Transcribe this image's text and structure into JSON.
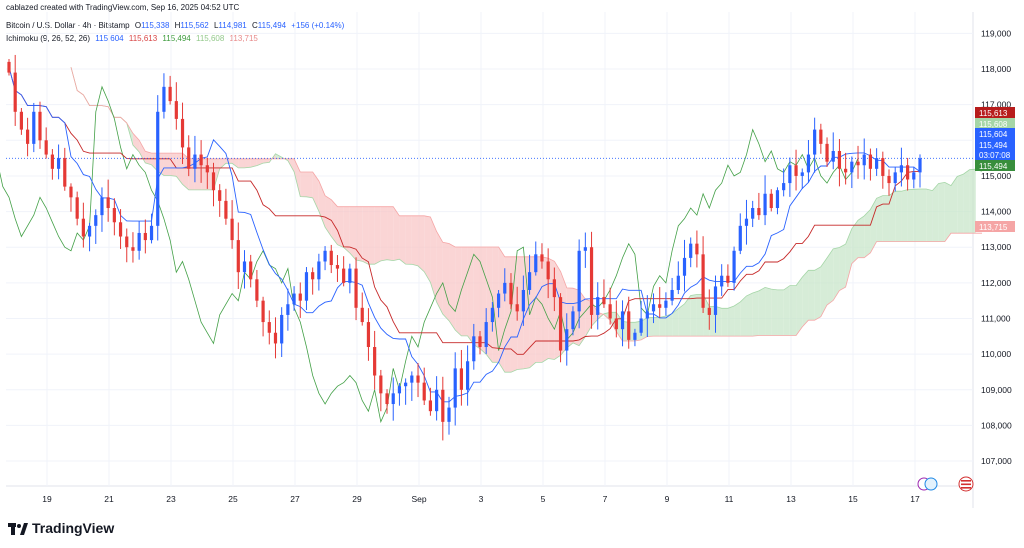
{
  "header": {
    "credit": "cablazed created with TradingView.com, Sep 16, 2025 04:52 UTC",
    "symbol": "Bitcoin / U.S. Dollar · 4h · Bitstamp",
    "o_label": "O",
    "o_value": "115,338",
    "h_label": "H",
    "h_value": "115,562",
    "l_label": "L",
    "l_value": "114,981",
    "c_label": "C",
    "c_value": "115,494",
    "change": "+156 (+0.14%)",
    "indicator_name": "Ichimoku (9, 26, 52, 26)",
    "ind_v1": "115,604",
    "ind_v2": "115,613",
    "ind_v3": "115,494",
    "ind_v4": "115,608",
    "ind_v5": "113,715"
  },
  "footer": {
    "brand": "TradingView"
  },
  "price_tags": [
    {
      "text": "115,613",
      "color": "#b71c1c"
    },
    {
      "text": "115,608",
      "color": "#a5d6a7"
    },
    {
      "text": "115,604",
      "color": "#2962ff"
    },
    {
      "text": "115,494",
      "color": "#2962ff"
    },
    {
      "text": "03:07:08",
      "color": "#2962ff"
    },
    {
      "text": "115,494",
      "color": "#388e3c"
    },
    {
      "text": "113,715",
      "color": "#f5a5a5"
    }
  ],
  "icons": [
    "calendar-event-icon",
    "us-flag-icon"
  ],
  "chart_data": {
    "type": "candlestick",
    "timeframe": "4h",
    "yaxis": {
      "ticks": [
        107000,
        108000,
        109000,
        110000,
        111000,
        112000,
        113000,
        114000,
        115000,
        116000,
        117000,
        118000,
        119000
      ],
      "range": [
        106300,
        119600
      ]
    },
    "xaxis": {
      "ticks": [
        "19",
        "21",
        "23",
        "25",
        "27",
        "29",
        "Sep",
        "3",
        "5",
        "7",
        "9",
        "11",
        "13",
        "15",
        "17"
      ]
    },
    "colors": {
      "up": "#2962ff",
      "down": "#e53935",
      "conversion": "#2962ff",
      "base": "#c62828",
      "lagging": "#43a047",
      "cloud_bull": "#c8e6c9",
      "cloud_bear": "#f8c7c7"
    },
    "close_series": [
      117900,
      116800,
      116300,
      115900,
      116800,
      116000,
      115600,
      115200,
      115500,
      114700,
      114400,
      113800,
      113300,
      113600,
      113900,
      114400,
      114100,
      113700,
      113300,
      113000,
      112900,
      113400,
      113200,
      113600,
      116800,
      117500,
      117100,
      116600,
      115800,
      115200,
      115600,
      115300,
      115100,
      114600,
      114300,
      113800,
      113200,
      112300,
      112600,
      112100,
      111500,
      110900,
      110600,
      110300,
      111100,
      111400,
      111700,
      111500,
      112300,
      112100,
      112600,
      112900,
      112500,
      112400,
      112000,
      112400,
      111300,
      110900,
      110200,
      109400,
      108900,
      108600,
      108900,
      109100,
      109200,
      109400,
      109200,
      108700,
      108400,
      109000,
      108100,
      108500,
      109600,
      109000,
      109800,
      110500,
      110200,
      110900,
      111300,
      111700,
      112000,
      111400,
      111200,
      111800,
      112300,
      112800,
      112600,
      112100,
      111600,
      110100,
      110700,
      111200,
      112900,
      113000,
      111100,
      111600,
      111400,
      111000,
      110700,
      111200,
      110400,
      110600,
      111000,
      111200,
      111400,
      111300,
      111500,
      111800,
      112200,
      112700,
      113100,
      112800,
      111300,
      111100,
      111900,
      112200,
      112000,
      112900,
      113600,
      113800,
      114100,
      113900,
      114500,
      114100,
      114600,
      114800,
      115300,
      115000,
      115100,
      115600,
      116300,
      115900,
      115400,
      115700,
      115200,
      115100,
      115400,
      115300,
      115600,
      115200,
      115500,
      115000,
      114800,
      115100,
      115300,
      114900,
      115100,
      115494
    ],
    "last_close": 115494
  }
}
